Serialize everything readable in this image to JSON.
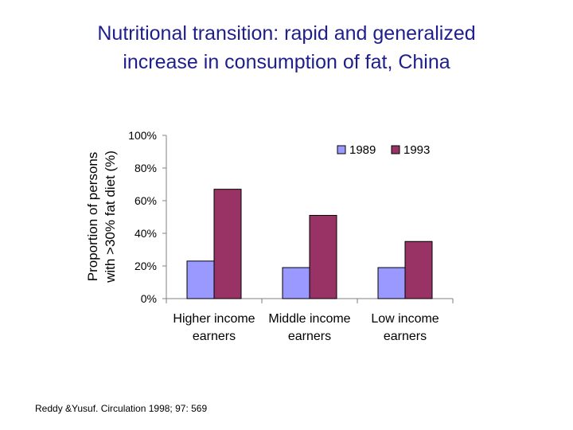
{
  "slide": {
    "title_line1": "Nutritional transition: rapid and generalized",
    "title_line2": "increase in consumption of fat, China",
    "source": "Reddy &Yusuf. Circulation 1998; 97: 569"
  },
  "colors": {
    "title": "#1f1f8c",
    "s1989": "#9999ff",
    "s1993": "#993366"
  },
  "chart_data": {
    "type": "bar",
    "title": "",
    "ylabel_line1": "Proportion of persons",
    "ylabel_line2": "with >30% fat diet (%)",
    "ylim": [
      0,
      100
    ],
    "yticks": [
      "0%",
      "20%",
      "40%",
      "60%",
      "80%",
      "100%"
    ],
    "categories": [
      [
        "Higher income",
        "earners"
      ],
      [
        "Middle income",
        "earners"
      ],
      [
        "Low income",
        "earners"
      ]
    ],
    "series": [
      {
        "name": "1989",
        "values": [
          23,
          19,
          19
        ]
      },
      {
        "name": "1993",
        "values": [
          67,
          51,
          35
        ]
      }
    ],
    "legend": "top-right",
    "grid": false
  }
}
